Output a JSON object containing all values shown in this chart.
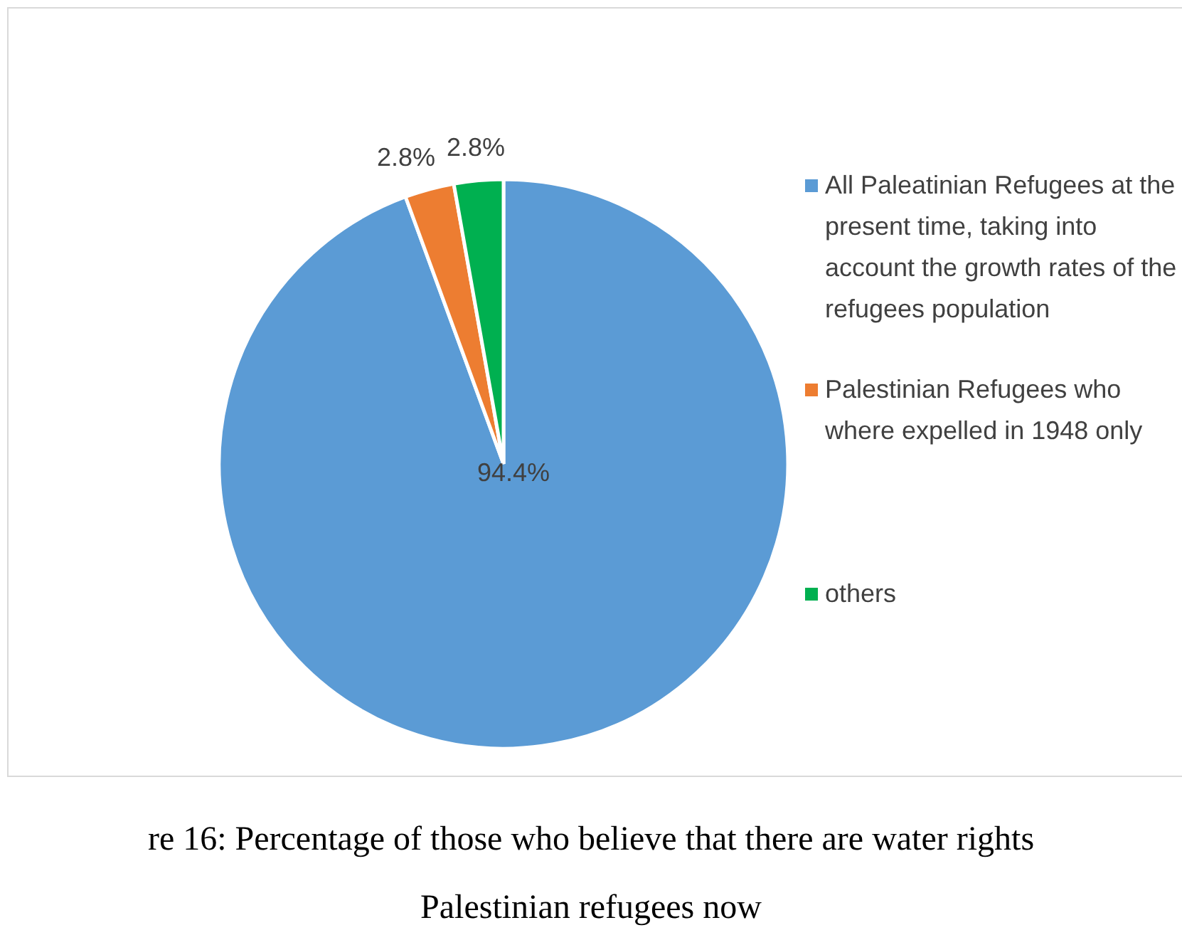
{
  "chart_data": {
    "type": "pie",
    "categories": [
      "All Paleatinian Refugees at the present time, taking into account the growth rates of the refugees population",
      "Palestinian Refugees who where expelled in 1948 only",
      "others"
    ],
    "values": [
      94.4,
      2.8,
      2.8
    ],
    "colors": [
      "#5b9bd5",
      "#ed7d31",
      "#00b050"
    ],
    "value_labels": [
      "94.4%",
      "2.8%",
      "2.8%"
    ],
    "legend": "right",
    "annotations": [
      "re 16: Percentage of those who believe that there are water rights",
      "Palestinian refugees now"
    ]
  }
}
